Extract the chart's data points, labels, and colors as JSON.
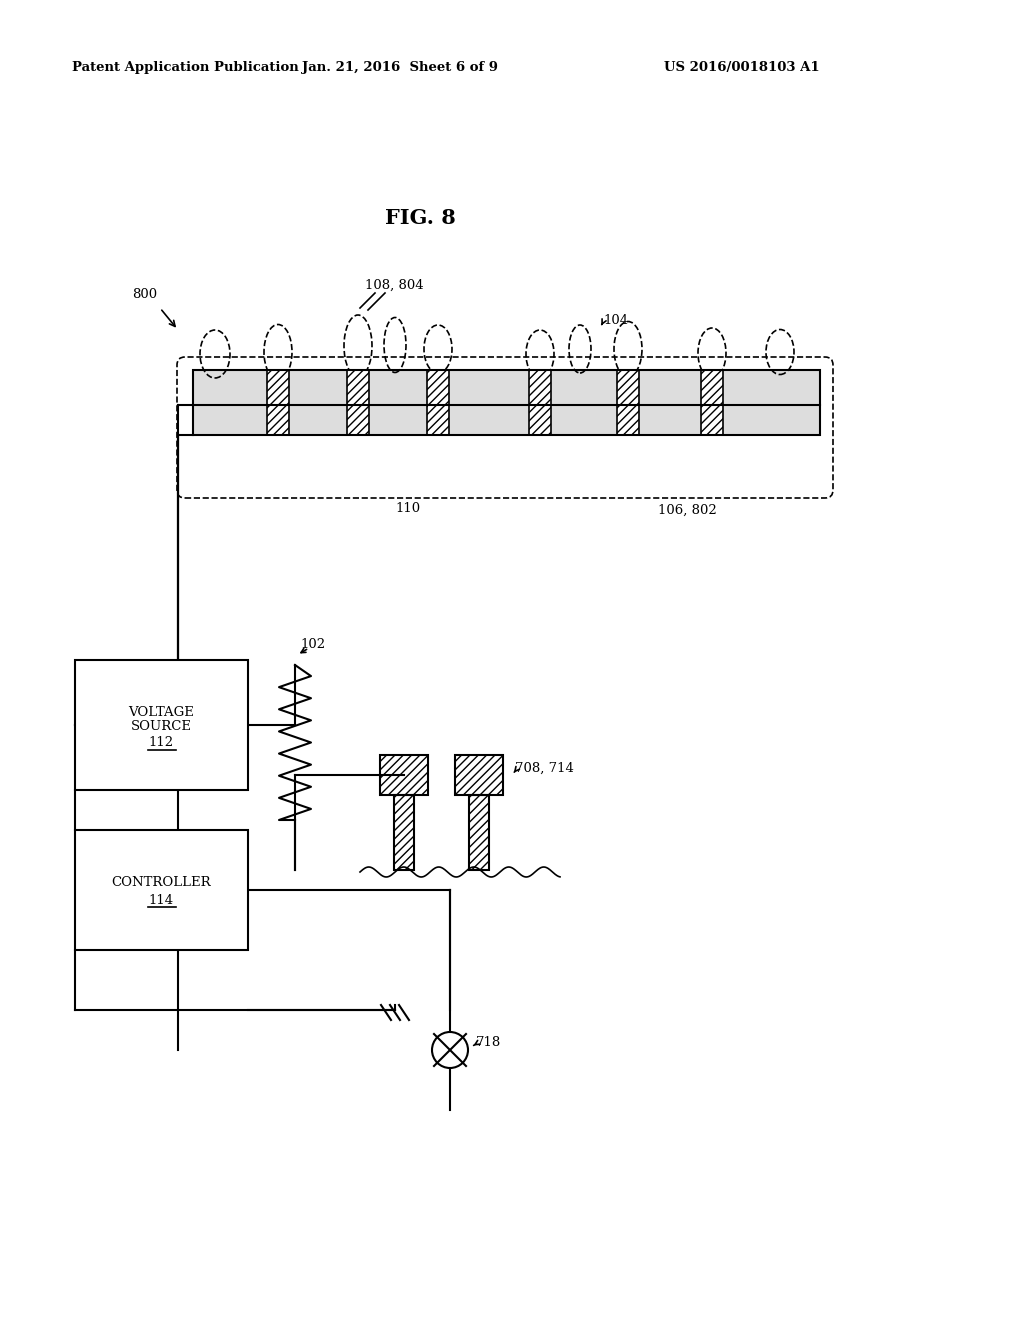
{
  "title": "FIG. 8",
  "header_left": "Patent Application Publication",
  "header_center": "Jan. 21, 2016  Sheet 6 of 9",
  "header_right": "US 2016/0018103 A1",
  "bg_color": "#ffffff",
  "label_800": "800",
  "label_102": "102",
  "label_104": "104",
  "label_106_802": "106, 802",
  "label_108_804": "108, 804",
  "label_110": "110",
  "label_708_714": "708, 714",
  "label_718": "718",
  "box1_line1": "VOLTAGE",
  "box1_line2": "SOURCE",
  "box1_line3": "112",
  "box2_line1": "CONTROLLER",
  "box2_line2": "114"
}
